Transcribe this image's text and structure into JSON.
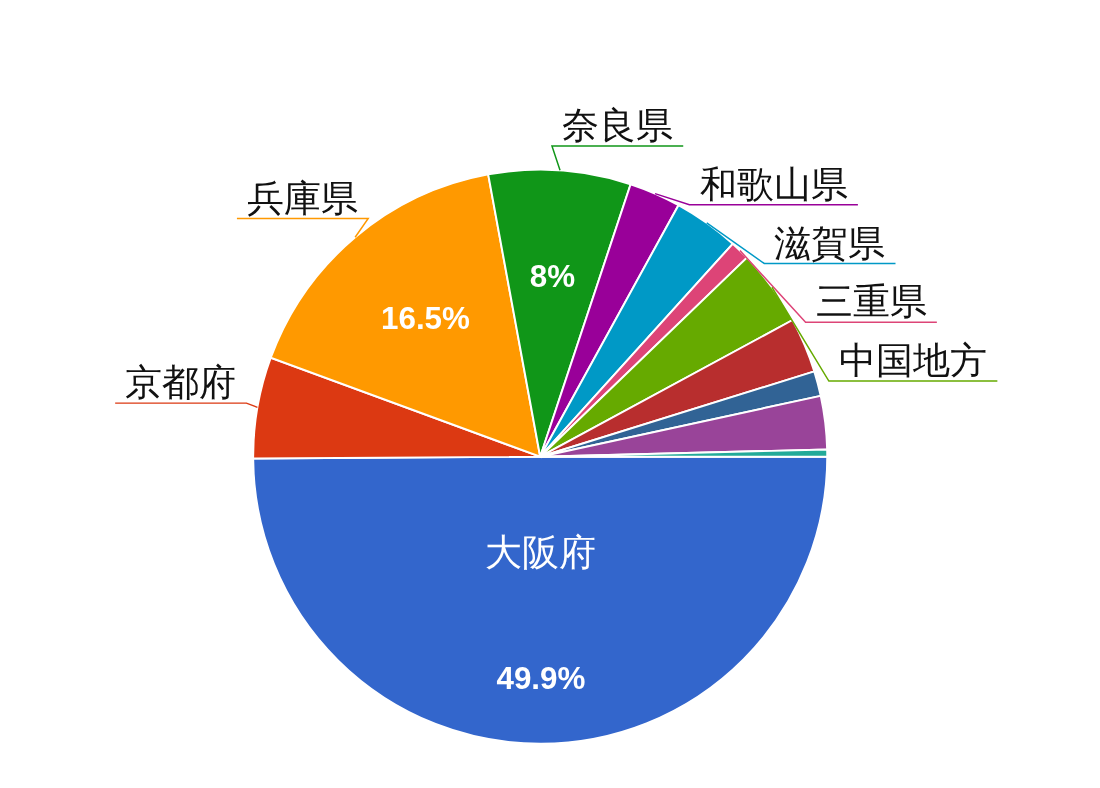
{
  "chart_data": {
    "type": "pie",
    "categories": [
      "大阪府",
      "京都府",
      "兵庫県",
      "奈良県",
      "和歌山県",
      "滋賀県",
      "三重県",
      "中国地方",
      null,
      null,
      null,
      null
    ],
    "values": [
      49.9,
      5.7,
      16.5,
      8,
      2.9,
      3.7,
      1.1,
      4.3,
      3.1,
      1.4,
      3.0,
      0.4
    ],
    "colors": [
      "#3366cc",
      "#dc3912",
      "#ff9900",
      "#109618",
      "#990099",
      "#0099c6",
      "#dd4477",
      "#66aa00",
      "#b82e2e",
      "#316395",
      "#994499",
      "#22aa99"
    ],
    "value_labels": [
      "49.9%",
      null,
      "16.5%",
      "8%",
      null,
      null,
      null,
      null,
      null,
      null,
      null,
      null
    ]
  }
}
